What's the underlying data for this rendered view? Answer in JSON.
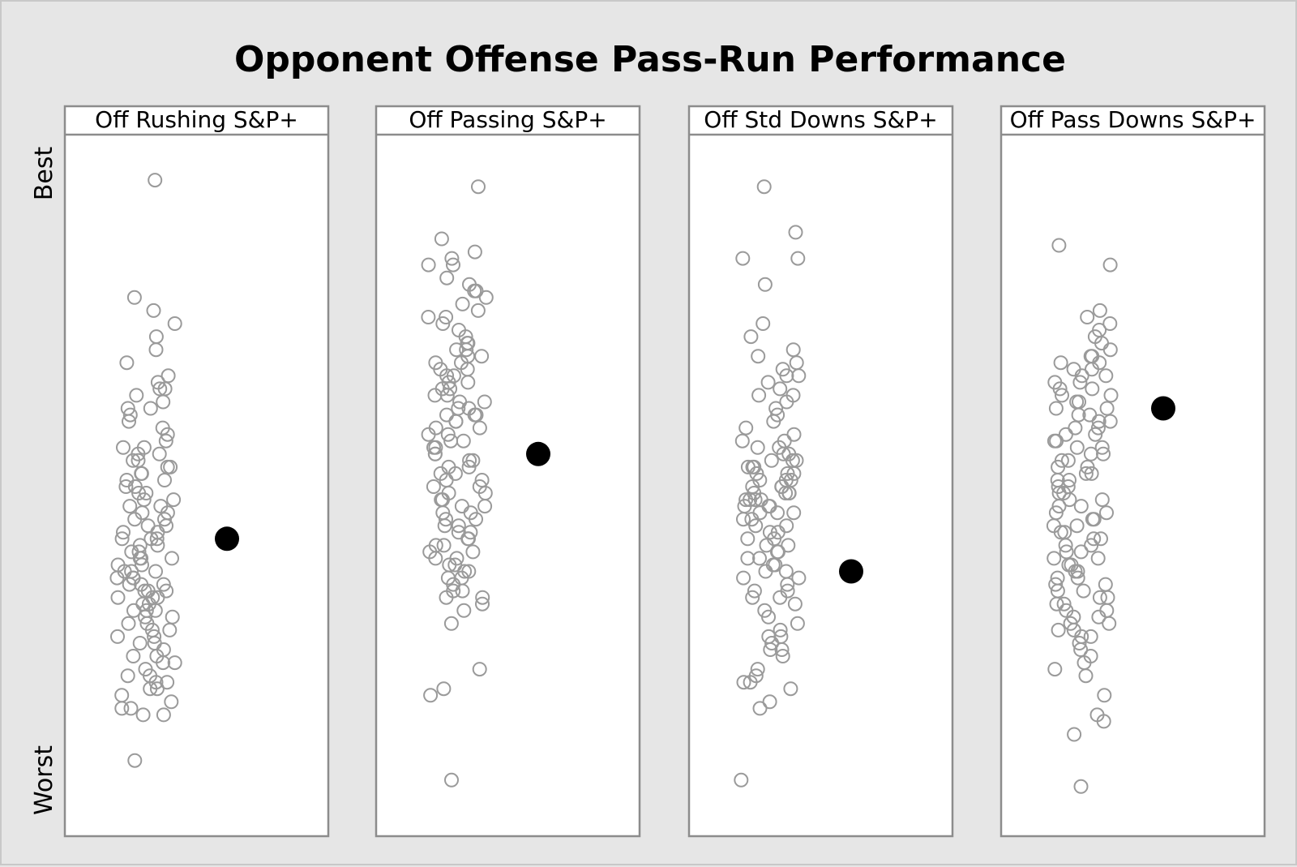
{
  "chart_data": {
    "type": "scatter",
    "title": "Opponent Offense Pass-Run Performance",
    "y_axis": {
      "top_label": "Best",
      "bottom_label": "Worst",
      "range": [
        0,
        100
      ]
    },
    "point_style": {
      "opponent_color": "#9a9a9a",
      "highlight_color": "#000000"
    },
    "panels": [
      {
        "label": "Off Rushing S&P+",
        "highlight": 42,
        "opponents": [
          97,
          79,
          77,
          75,
          73,
          71,
          69,
          67,
          66,
          65,
          65,
          64,
          63,
          62,
          62,
          61,
          60,
          59,
          58,
          57,
          56,
          56,
          55,
          55,
          54,
          54,
          53,
          53,
          52,
          52,
          51,
          51,
          50,
          50,
          49,
          49,
          48,
          48,
          47,
          47,
          46,
          46,
          45,
          45,
          44,
          44,
          43,
          43,
          42,
          42,
          42,
          41,
          41,
          40,
          40,
          39,
          39,
          39,
          38,
          38,
          37,
          37,
          37,
          36,
          36,
          36,
          35,
          35,
          35,
          34,
          34,
          34,
          33,
          33,
          33,
          32,
          32,
          31,
          31,
          31,
          30,
          30,
          29,
          29,
          28,
          28,
          27,
          27,
          26,
          26,
          25,
          24,
          24,
          23,
          23,
          22,
          21,
          21,
          20,
          20,
          19,
          19,
          18,
          17,
          16,
          16,
          15,
          15,
          8
        ]
      },
      {
        "label": "Off Passing S&P+",
        "highlight": 55,
        "opponents": [
          96,
          88,
          86,
          85,
          84,
          84,
          82,
          81,
          80,
          80,
          79,
          78,
          77,
          76,
          76,
          75,
          74,
          73,
          72,
          72,
          71,
          71,
          70,
          70,
          69,
          69,
          68,
          68,
          67,
          67,
          66,
          66,
          65,
          65,
          64,
          64,
          63,
          63,
          62,
          62,
          61,
          61,
          61,
          60,
          60,
          59,
          59,
          58,
          58,
          57,
          57,
          56,
          56,
          55,
          55,
          54,
          54,
          53,
          53,
          52,
          52,
          51,
          51,
          50,
          50,
          49,
          49,
          48,
          48,
          47,
          47,
          46,
          46,
          45,
          45,
          44,
          44,
          43,
          43,
          42,
          42,
          41,
          41,
          40,
          40,
          39,
          39,
          38,
          38,
          37,
          37,
          36,
          36,
          35,
          34,
          34,
          33,
          33,
          32,
          31,
          29,
          22,
          19,
          18,
          5
        ]
      },
      {
        "label": "Off Std Downs S&P+",
        "highlight": 37,
        "opponents": [
          96,
          89,
          85,
          85,
          81,
          75,
          73,
          71,
          70,
          69,
          68,
          67,
          67,
          66,
          65,
          64,
          64,
          63,
          62,
          61,
          60,
          59,
          58,
          57,
          57,
          56,
          56,
          55,
          55,
          54,
          54,
          54,
          53,
          53,
          53,
          52,
          52,
          52,
          51,
          51,
          51,
          50,
          50,
          50,
          49,
          49,
          49,
          49,
          48,
          48,
          48,
          48,
          47,
          47,
          47,
          46,
          46,
          46,
          45,
          45,
          44,
          44,
          43,
          43,
          42,
          42,
          41,
          41,
          40,
          40,
          39,
          39,
          38,
          38,
          37,
          37,
          36,
          36,
          35,
          34,
          34,
          33,
          33,
          32,
          31,
          30,
          29,
          28,
          27,
          27,
          26,
          25,
          25,
          24,
          22,
          21,
          20,
          20,
          19,
          17,
          16,
          5
        ]
      },
      {
        "label": "Off Pass Downs S&P+",
        "highlight": 62,
        "opponents": [
          87,
          84,
          77,
          76,
          75,
          74,
          73,
          72,
          71,
          70,
          70,
          69,
          69,
          68,
          68,
          67,
          67,
          66,
          66,
          65,
          65,
          64,
          64,
          63,
          63,
          62,
          62,
          61,
          61,
          60,
          60,
          59,
          59,
          58,
          58,
          57,
          57,
          56,
          56,
          55,
          55,
          54,
          54,
          53,
          53,
          52,
          52,
          51,
          51,
          50,
          50,
          49,
          49,
          48,
          48,
          47,
          47,
          46,
          46,
          45,
          45,
          44,
          44,
          43,
          43,
          42,
          42,
          41,
          41,
          40,
          40,
          39,
          39,
          38,
          38,
          37,
          37,
          36,
          36,
          35,
          35,
          34,
          34,
          33,
          33,
          32,
          32,
          31,
          31,
          30,
          30,
          29,
          29,
          28,
          28,
          27,
          27,
          26,
          25,
          24,
          23,
          22,
          21,
          18,
          15,
          14,
          12,
          4
        ]
      }
    ]
  }
}
